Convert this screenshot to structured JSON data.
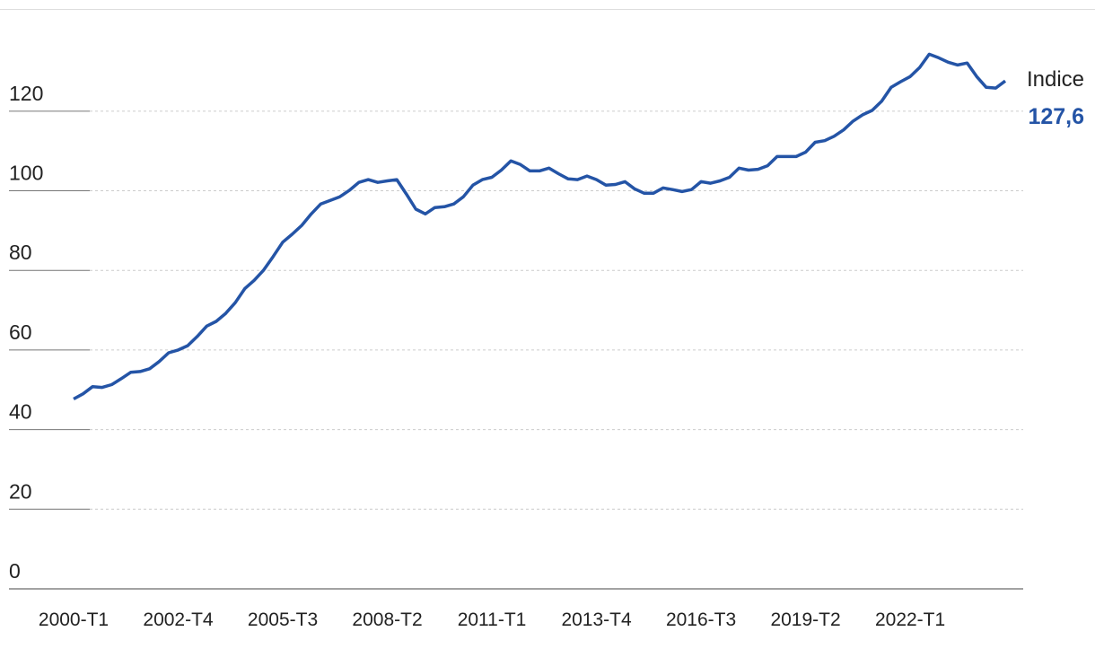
{
  "chart_data": {
    "type": "line",
    "categories": [
      "2000-T1",
      null,
      null,
      null,
      null,
      null,
      null,
      null,
      null,
      null,
      null,
      "2002-T4",
      null,
      null,
      null,
      null,
      null,
      null,
      null,
      null,
      null,
      null,
      "2005-T3",
      null,
      null,
      null,
      null,
      null,
      null,
      null,
      null,
      null,
      null,
      "2008-T2",
      null,
      null,
      null,
      null,
      null,
      null,
      null,
      null,
      null,
      null,
      "2011-T1",
      null,
      null,
      null,
      null,
      null,
      null,
      null,
      null,
      null,
      null,
      "2013-T4",
      null,
      null,
      null,
      null,
      null,
      null,
      null,
      null,
      null,
      null,
      "2016-T3",
      null,
      null,
      null,
      null,
      null,
      null,
      null,
      null,
      null,
      null,
      "2019-T2",
      null,
      null,
      null,
      null,
      null,
      null,
      null,
      null,
      null,
      null,
      "2022-T1",
      null,
      null,
      null,
      null,
      null,
      null,
      null,
      null,
      null,
      null
    ],
    "series": [
      {
        "name": "Indice",
        "color": "#2454a6",
        "values": [
          47.7,
          49,
          50.8,
          50.6,
          51.3,
          52.8,
          54.4,
          54.6,
          55.3,
          57.1,
          59.3,
          60,
          61.1,
          63.4,
          66,
          67.2,
          69.2,
          71.9,
          75.4,
          77.5,
          80.1,
          83.5,
          87.1,
          89.1,
          91.3,
          94.2,
          96.7,
          97.6,
          98.5,
          100.1,
          102.1,
          102.8,
          102.1,
          102.5,
          102.8,
          99.2,
          95.4,
          94.2,
          95.8,
          96,
          96.7,
          98.5,
          101.4,
          102.8,
          103.4,
          105.2,
          107.5,
          106.6,
          105,
          105,
          105.7,
          104.3,
          103,
          102.8,
          103.7,
          102.8,
          101.4,
          101.6,
          102.3,
          100.5,
          99.4,
          99.4,
          100.7,
          100.3,
          99.8,
          100.3,
          102.3,
          101.9,
          102.5,
          103.4,
          105.7,
          105.2,
          105.4,
          106.3,
          108.6,
          108.6,
          108.6,
          109.7,
          112.2,
          112.6,
          113.7,
          115.3,
          117.5,
          119.1,
          120.2,
          122.5,
          126,
          127.4,
          128.7,
          131,
          134.3,
          133.4,
          132.3,
          131.6,
          132.1,
          128.7,
          126,
          125.8,
          127.6
        ],
        "last_value_label": "127,6"
      }
    ],
    "ylim": [
      0,
      145
    ],
    "yticks": [
      0,
      20,
      40,
      60,
      80,
      100,
      120
    ],
    "grid": true
  }
}
